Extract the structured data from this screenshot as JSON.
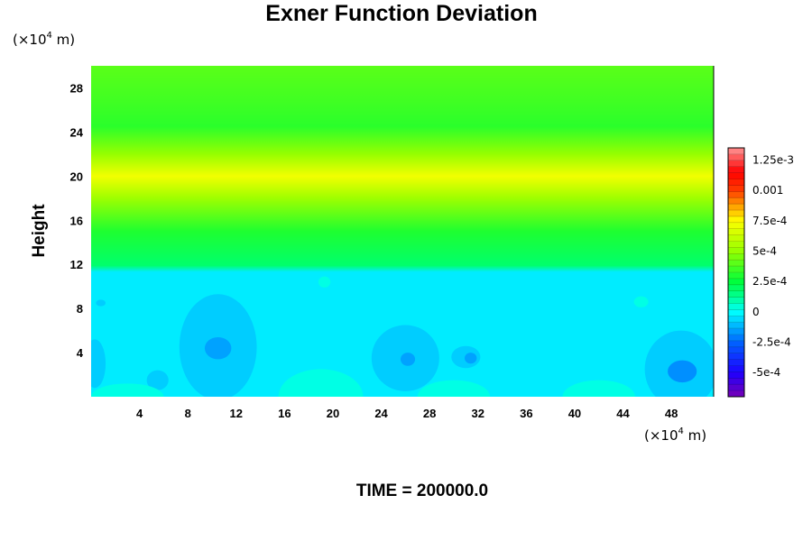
{
  "chart_data": {
    "type": "heatmap",
    "title": "Exner Function Deviation",
    "ylabel": "Height",
    "xlabel": "",
    "x_unit": {
      "prefix": "(×10",
      "exponent": "4",
      "suffix": " m)"
    },
    "y_unit": {
      "prefix": "(×10",
      "exponent": "4",
      "suffix": " m)"
    },
    "xlim": [
      0,
      51.5
    ],
    "ylim": [
      0,
      30
    ],
    "x_ticks": [
      4,
      8,
      12,
      16,
      20,
      24,
      28,
      32,
      36,
      40,
      44,
      48
    ],
    "y_ticks": [
      4,
      8,
      12,
      16,
      20,
      24,
      28
    ],
    "vertical_profile": [
      {
        "height": 0,
        "value": -3e-05
      },
      {
        "height": 11.3,
        "value": -3e-05
      },
      {
        "height": 11.9,
        "value": 0.00018
      },
      {
        "height": 15,
        "value": 0.0003
      },
      {
        "height": 18,
        "value": 0.00052
      },
      {
        "height": 20,
        "value": 0.00072
      },
      {
        "height": 22,
        "value": 0.0005
      },
      {
        "height": 24.5,
        "value": 0.00032
      },
      {
        "height": 27,
        "value": 0.00036
      },
      {
        "height": 30,
        "value": 0.0004
      }
    ],
    "features": [
      {
        "x": 10.5,
        "y": 4.5,
        "value": -8e-05,
        "rx": 3.2,
        "ry": 4.8
      },
      {
        "x": 10.5,
        "y": 4.4,
        "value": -0.00015,
        "rx": 1.1,
        "ry": 1.0
      },
      {
        "x": 26.0,
        "y": 3.5,
        "value": -8e-05,
        "rx": 2.8,
        "ry": 3.0
      },
      {
        "x": 26.2,
        "y": 3.4,
        "value": -0.00015,
        "rx": 0.6,
        "ry": 0.6
      },
      {
        "x": 31.0,
        "y": 3.6,
        "value": -8e-05,
        "rx": 1.2,
        "ry": 1.0
      },
      {
        "x": 31.4,
        "y": 3.5,
        "value": -0.00015,
        "rx": 0.5,
        "ry": 0.5
      },
      {
        "x": 48.8,
        "y": 2.5,
        "value": -8e-05,
        "rx": 3.0,
        "ry": 3.5
      },
      {
        "x": 48.9,
        "y": 2.3,
        "value": -0.00018,
        "rx": 1.2,
        "ry": 1.0
      },
      {
        "x": 5.5,
        "y": 1.5,
        "value": -8e-05,
        "rx": 0.9,
        "ry": 0.9
      },
      {
        "x": 0.3,
        "y": 3.0,
        "value": -8e-05,
        "rx": 0.9,
        "ry": 2.2
      },
      {
        "x": 0.8,
        "y": 8.5,
        "value": -8e-05,
        "rx": 0.4,
        "ry": 0.3
      },
      {
        "x": 19.3,
        "y": 10.4,
        "value": 3e-05,
        "rx": 0.5,
        "ry": 0.5
      },
      {
        "x": 45.5,
        "y": 8.6,
        "value": 3e-05,
        "rx": 0.6,
        "ry": 0.5
      },
      {
        "x": 19.0,
        "y": 0.0,
        "value": 3e-05,
        "rx": 3.5,
        "ry": 2.5
      },
      {
        "x": 3.0,
        "y": 0.0,
        "value": 3e-05,
        "rx": 3.0,
        "ry": 1.2
      },
      {
        "x": 30.0,
        "y": 0.0,
        "value": 3e-05,
        "rx": 3.0,
        "ry": 1.5
      },
      {
        "x": 42.0,
        "y": 0.0,
        "value": 3e-05,
        "rx": 3.0,
        "ry": 1.5
      }
    ],
    "colorbar": {
      "range": [
        -0.0007,
        0.00135
      ],
      "labels": [
        "1.25e-3",
        "0.001",
        "7.5e-4",
        "5e-4",
        "2.5e-4",
        "0",
        "-2.5e-4",
        "-5e-4"
      ],
      "label_values": [
        0.00125,
        0.001,
        0.00075,
        0.0005,
        0.00025,
        0,
        -0.00025,
        -0.0005
      ],
      "color_stops": [
        {
          "value": -0.0007,
          "color": "#7800b4"
        },
        {
          "value": -0.0005,
          "color": "#1e00ff"
        },
        {
          "value": -0.00025,
          "color": "#0064ff"
        },
        {
          "value": -0.00012,
          "color": "#00b4ff"
        },
        {
          "value": 0.0,
          "color": "#00ffff"
        },
        {
          "value": 0.00012,
          "color": "#00ff96"
        },
        {
          "value": 0.00025,
          "color": "#00ff3c"
        },
        {
          "value": 0.0005,
          "color": "#96ff00"
        },
        {
          "value": 0.00075,
          "color": "#ffff00"
        },
        {
          "value": 0.001,
          "color": "#ff3c00"
        },
        {
          "value": 0.00115,
          "color": "#ff0000"
        },
        {
          "value": 0.00135,
          "color": "#ff9696"
        }
      ]
    },
    "footer": "TIME = 200000.0"
  }
}
